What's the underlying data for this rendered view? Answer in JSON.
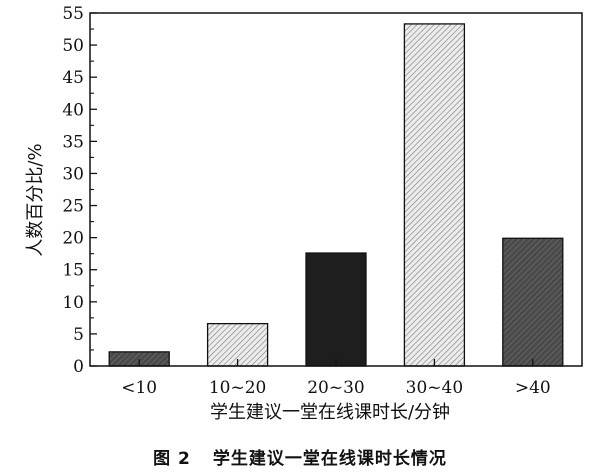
{
  "chart_data": {
    "type": "bar",
    "categories": [
      "<10",
      "10~20",
      "20~30",
      "30~40",
      ">40"
    ],
    "values": [
      2.2,
      6.6,
      17.6,
      53.3,
      19.9
    ],
    "xlabel": "学生建议一堂在线课时长/分钟",
    "ylabel": "人数百分比/%",
    "ylim": [
      0,
      55
    ],
    "yticks": [
      0,
      5,
      10,
      15,
      20,
      25,
      30,
      35,
      40,
      45,
      50,
      55
    ],
    "grid": false,
    "bar_styles": [
      "dark-gray-hatch",
      "light-gray-hatch",
      "black",
      "light-gray-hatch",
      "dark-gray-hatch"
    ]
  },
  "caption": {
    "number": "图 2",
    "text": "学生建议一堂在线课时长情况"
  }
}
